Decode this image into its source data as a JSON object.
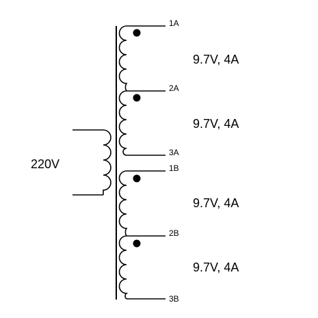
{
  "primary": {
    "label": "220V"
  },
  "secondaries": [
    {
      "top_pin": "1A",
      "bottom_pin": "2A",
      "rating": "9.7V, 4A"
    },
    {
      "top_pin": "2A",
      "bottom_pin": "3A",
      "rating": "9.7V, 4A"
    },
    {
      "top_pin": "1B",
      "bottom_pin": "2B",
      "rating": "9.7V, 4A"
    },
    {
      "top_pin": "2B",
      "bottom_pin": "3B",
      "rating": "9.7V, 4A"
    }
  ],
  "pins": [
    "1A",
    "2A",
    "3A",
    "1B",
    "2B",
    "3B"
  ],
  "colors": {
    "ink": "#000000",
    "background": "#ffffff"
  }
}
